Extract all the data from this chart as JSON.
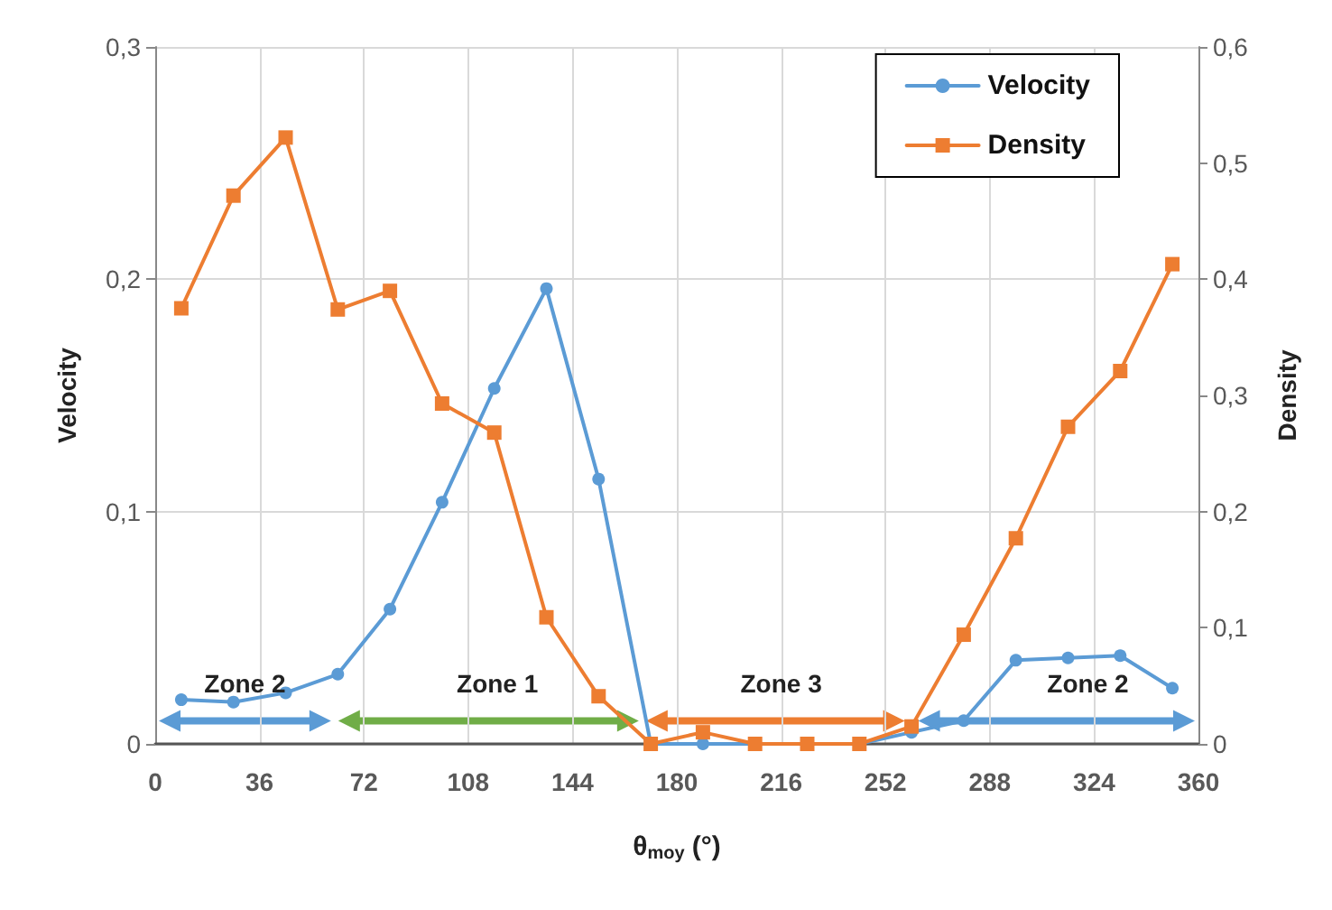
{
  "chart_data": {
    "type": "line",
    "xlabel": "θ$_{moy}$ (°)",
    "ylabel": "Velocity",
    "y2label": "Density",
    "x": [
      9,
      27,
      45,
      63,
      81,
      99,
      117,
      135,
      153,
      171,
      189,
      207,
      225,
      243,
      261,
      279,
      297,
      315,
      333,
      351
    ],
    "series": [
      {
        "name": "Velocity",
        "color": "#5b9bd5",
        "marker": "circle",
        "values": [
          0.019,
          0.018,
          0.022,
          0.03,
          0.058,
          0.104,
          0.153,
          0.196,
          0.114,
          0,
          0,
          0,
          0,
          0,
          0.005,
          0.01,
          0.036,
          0.037,
          0.038,
          0.024
        ]
      },
      {
        "name": "Density",
        "color": "#ed7d31",
        "marker": "square",
        "axis": "y2",
        "values": [
          0.375,
          0.472,
          0.522,
          0.374,
          0.39,
          0.293,
          0.268,
          0.109,
          0.041,
          0,
          0.01,
          0,
          0,
          0,
          0.015,
          0.094,
          0.177,
          0.273,
          0.321,
          0.413
        ]
      }
    ],
    "xlim": [
      0,
      360
    ],
    "xticks": [
      0,
      36,
      72,
      108,
      144,
      180,
      216,
      252,
      288,
      324,
      360
    ],
    "ylim": [
      0,
      0.3
    ],
    "yticks": [
      0,
      {
        "value": 0.1,
        "label": "0,1"
      },
      {
        "value": 0.2,
        "label": "0,2"
      },
      {
        "value": 0.3,
        "label": "0,3"
      }
    ],
    "y2lim": [
      0,
      0.6
    ],
    "y2ticks": [
      0,
      {
        "value": 0.1,
        "label": "0,1"
      },
      {
        "value": 0.2,
        "label": "0,2"
      },
      {
        "value": 0.3,
        "label": "0,3"
      },
      {
        "value": 0.4,
        "label": "0,4"
      },
      {
        "value": 0.5,
        "label": "0,5"
      },
      {
        "value": 0.6,
        "label": "0,6"
      }
    ],
    "annotations": [
      "Zone 2",
      "Zone 1",
      "Zone 3",
      "Zone 2"
    ],
    "grid": true,
    "legend": "top right",
    "line_style": "solid"
  }
}
